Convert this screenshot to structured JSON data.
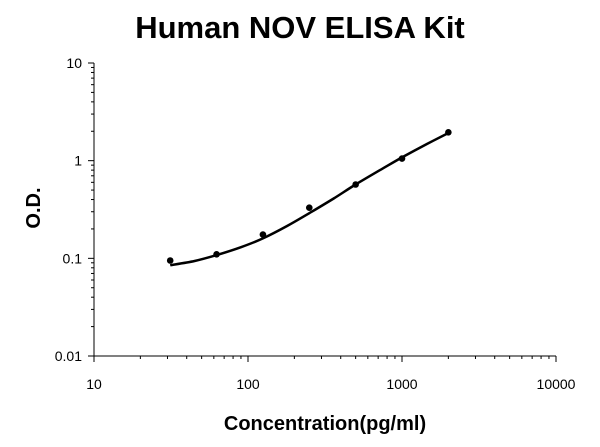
{
  "chart_data": {
    "type": "scatter",
    "title": "Human NOV ELISA Kit",
    "xlabel": "Concentration(pg/ml)",
    "ylabel": "O.D.",
    "x_scale": "log",
    "y_scale": "log",
    "xlim": [
      10,
      10000
    ],
    "ylim": [
      0.01,
      10
    ],
    "x_ticks": [
      "10",
      "100",
      "1000",
      "10000"
    ],
    "y_ticks": [
      "0.01",
      "0.1",
      "1",
      "10"
    ],
    "grid": false,
    "legend": "none",
    "series": [
      {
        "points": [
          {
            "x": 31.25,
            "y": 0.095
          },
          {
            "x": 62.5,
            "y": 0.11
          },
          {
            "x": 125,
            "y": 0.175
          },
          {
            "x": 250,
            "y": 0.33
          },
          {
            "x": 500,
            "y": 0.57
          },
          {
            "x": 1000,
            "y": 1.05
          },
          {
            "x": 2000,
            "y": 1.95
          }
        ],
        "fit_curve": [
          {
            "x": 31.25,
            "y": 0.085
          },
          {
            "x": 45,
            "y": 0.094
          },
          {
            "x": 62.5,
            "y": 0.108
          },
          {
            "x": 90,
            "y": 0.13
          },
          {
            "x": 125,
            "y": 0.16
          },
          {
            "x": 180,
            "y": 0.215
          },
          {
            "x": 250,
            "y": 0.29
          },
          {
            "x": 360,
            "y": 0.41
          },
          {
            "x": 500,
            "y": 0.57
          },
          {
            "x": 720,
            "y": 0.8
          },
          {
            "x": 1000,
            "y": 1.08
          },
          {
            "x": 1450,
            "y": 1.48
          },
          {
            "x": 2000,
            "y": 1.92
          }
        ]
      }
    ],
    "colors": {
      "marker": "#000000",
      "curve": "#000000",
      "axis": "#000000"
    }
  }
}
